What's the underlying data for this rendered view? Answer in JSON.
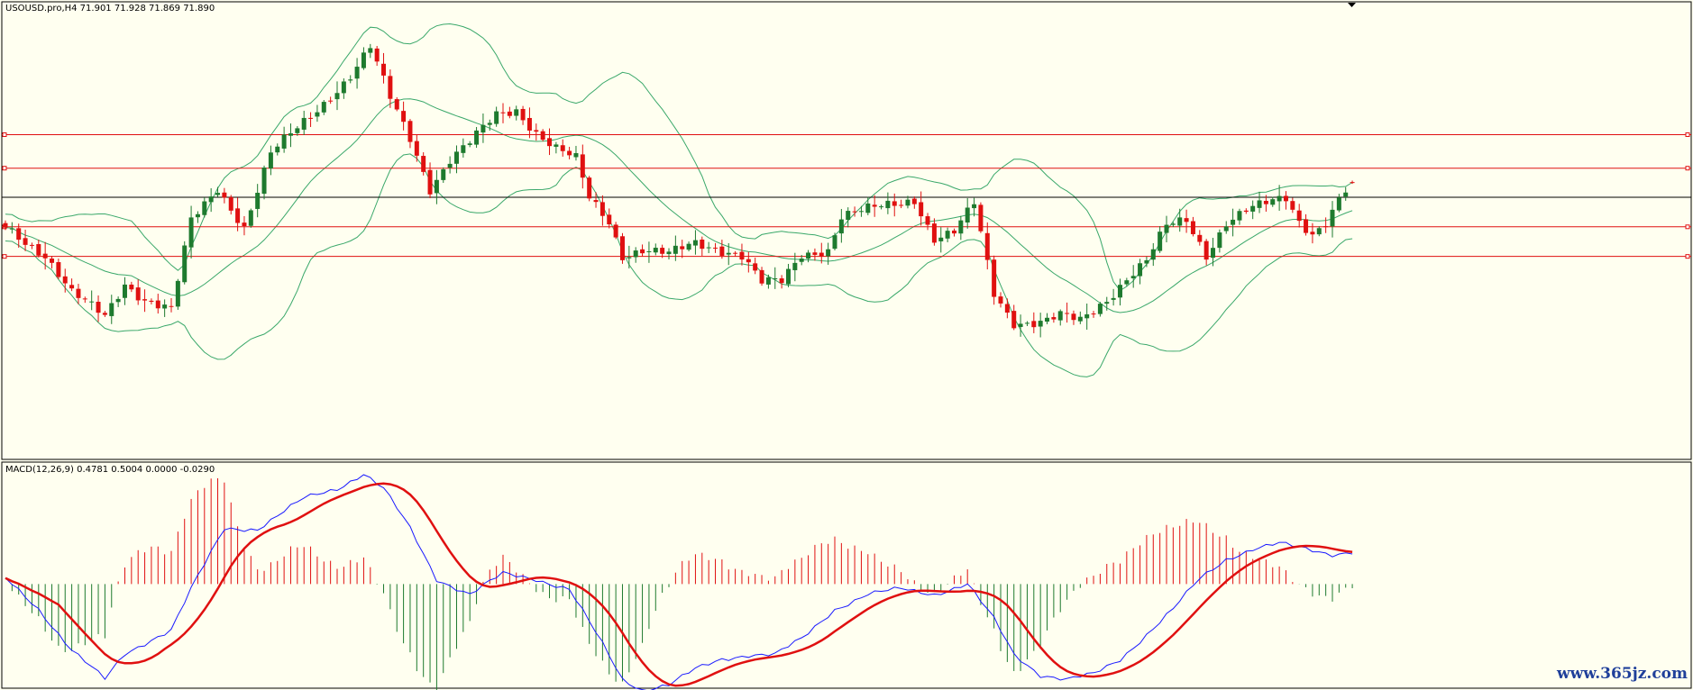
{
  "header": {
    "price_label": "USOUSD.pro,H4  71.901 71.928 71.869 71.890"
  },
  "macd_header": {
    "label": "MACD(12,26,9) 0.4781 0.5004 0.0000 -0.0290"
  },
  "watermark": "www.365jz.com",
  "colors": {
    "background": "#fffff0",
    "bull_candle": "#1e7a2e",
    "bear_candle": "#e01010",
    "bollinger": "#3aa86a",
    "hline_red": "#e01010",
    "hline_black": "#000000",
    "macd_line": "#1a1aff",
    "signal_line": "#e01010",
    "hist_pos": "#e01010",
    "hist_neg": "#1e7a2e"
  },
  "chart_data": {
    "type": "candlestick",
    "symbol": "USOUSD.pro",
    "timeframe": "H4",
    "last_ohlc": {
      "open": 71.901,
      "high": 71.928,
      "low": 71.869,
      "close": 71.89
    },
    "price_ylim": [
      67.0,
      75.0
    ],
    "horizontal_lines": [
      {
        "price": 72.75,
        "color": "red"
      },
      {
        "price": 72.15,
        "color": "red"
      },
      {
        "price": 71.63,
        "color": "black"
      },
      {
        "price": 71.1,
        "color": "red"
      },
      {
        "price": 70.57,
        "color": "red"
      }
    ],
    "close_anchors": [
      [
        0,
        71.1
      ],
      [
        6,
        70.6
      ],
      [
        10,
        69.9
      ],
      [
        15,
        69.5
      ],
      [
        18,
        70.1
      ],
      [
        21,
        69.8
      ],
      [
        25,
        69.6
      ],
      [
        28,
        71.2
      ],
      [
        32,
        71.8
      ],
      [
        36,
        71.1
      ],
      [
        40,
        72.4
      ],
      [
        46,
        73.1
      ],
      [
        52,
        73.8
      ],
      [
        55,
        74.3
      ],
      [
        58,
        73.4
      ],
      [
        61,
        72.7
      ],
      [
        64,
        71.8
      ],
      [
        67,
        72.3
      ],
      [
        70,
        72.6
      ],
      [
        74,
        73.1
      ],
      [
        77,
        73.2
      ],
      [
        80,
        72.8
      ],
      [
        83,
        72.5
      ],
      [
        86,
        72.3
      ],
      [
        88,
        71.6
      ],
      [
        91,
        71.2
      ],
      [
        93,
        70.6
      ],
      [
        96,
        70.7
      ],
      [
        100,
        70.6
      ],
      [
        104,
        70.8
      ],
      [
        108,
        70.7
      ],
      [
        111,
        70.6
      ],
      [
        114,
        70.1
      ],
      [
        117,
        70.1
      ],
      [
        120,
        70.6
      ],
      [
        124,
        70.7
      ],
      [
        126,
        71.3
      ],
      [
        130,
        71.4
      ],
      [
        134,
        71.5
      ],
      [
        137,
        71.6
      ],
      [
        140,
        70.9
      ],
      [
        143,
        71.0
      ],
      [
        146,
        71.5
      ],
      [
        149,
        69.9
      ],
      [
        152,
        69.4
      ],
      [
        156,
        69.4
      ],
      [
        159,
        69.5
      ],
      [
        162,
        69.4
      ],
      [
        166,
        69.8
      ],
      [
        169,
        70.2
      ],
      [
        172,
        70.5
      ],
      [
        175,
        71.1
      ],
      [
        178,
        71.2
      ],
      [
        181,
        70.6
      ],
      [
        184,
        71.2
      ],
      [
        187,
        71.4
      ],
      [
        190,
        71.5
      ],
      [
        193,
        71.6
      ],
      [
        195,
        71.2
      ],
      [
        197,
        71.0
      ],
      [
        199,
        71.2
      ],
      [
        201,
        71.6
      ],
      [
        203,
        71.9
      ]
    ],
    "macd_ylim": [
      -1.0,
      1.15
    ],
    "macd_anchors": [
      [
        0,
        0.05
      ],
      [
        5,
        -0.25
      ],
      [
        10,
        -0.65
      ],
      [
        15,
        -0.95
      ],
      [
        18,
        -0.7
      ],
      [
        22,
        -0.55
      ],
      [
        25,
        -0.45
      ],
      [
        28,
        -0.05
      ],
      [
        33,
        0.55
      ],
      [
        38,
        0.55
      ],
      [
        45,
        0.85
      ],
      [
        50,
        0.95
      ],
      [
        54,
        1.1
      ],
      [
        57,
        0.95
      ],
      [
        61,
        0.55
      ],
      [
        65,
        0.05
      ],
      [
        70,
        -0.1
      ],
      [
        75,
        0.1
      ],
      [
        80,
        0.05
      ],
      [
        85,
        -0.05
      ],
      [
        90,
        -0.6
      ],
      [
        93,
        -0.95
      ],
      [
        96,
        -1.05
      ],
      [
        100,
        -1.0
      ],
      [
        104,
        -0.85
      ],
      [
        108,
        -0.75
      ],
      [
        112,
        -0.7
      ],
      [
        116,
        -0.7
      ],
      [
        120,
        -0.55
      ],
      [
        125,
        -0.25
      ],
      [
        130,
        -0.1
      ],
      [
        135,
        -0.05
      ],
      [
        140,
        -0.1
      ],
      [
        145,
        0.0
      ],
      [
        149,
        -0.35
      ],
      [
        152,
        -0.7
      ],
      [
        156,
        -0.9
      ],
      [
        160,
        -0.95
      ],
      [
        164,
        -0.9
      ],
      [
        168,
        -0.75
      ],
      [
        172,
        -0.5
      ],
      [
        176,
        -0.25
      ],
      [
        180,
        0.05
      ],
      [
        184,
        0.25
      ],
      [
        188,
        0.35
      ],
      [
        192,
        0.4
      ],
      [
        196,
        0.35
      ],
      [
        200,
        0.3
      ],
      [
        203,
        0.32
      ]
    ],
    "signal_period": 9,
    "ma_period": 20,
    "bollinger_period": 20,
    "bollinger_deviation": 2
  }
}
